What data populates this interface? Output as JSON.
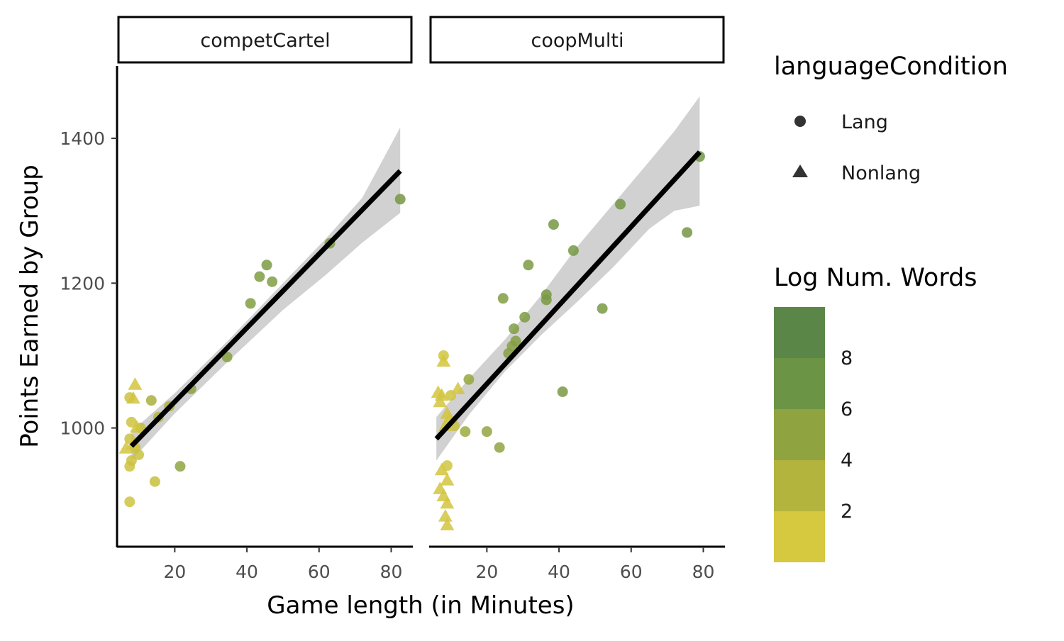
{
  "chart_data": {
    "type": "scatter",
    "xlabel": "Game length (in Minutes)",
    "ylabel": "Points Earned by Group",
    "xlim": [
      4,
      86
    ],
    "ylim": [
      837,
      1500
    ],
    "x_ticks": [
      20,
      40,
      60,
      80
    ],
    "y_ticks": [
      1000,
      1200,
      1400
    ],
    "x_tick_labels": [
      "20",
      "40",
      "60",
      "80"
    ],
    "y_tick_labels": [
      "1000",
      "1200",
      "1400"
    ],
    "grid": false,
    "shape_legend": {
      "title": "languageCondition",
      "items": [
        {
          "label": "Lang",
          "shape": "circle"
        },
        {
          "label": "Nonlang",
          "shape": "triangle"
        }
      ]
    },
    "color_legend": {
      "title": "Log Num. Words",
      "breaks": [
        2,
        4,
        6,
        8
      ],
      "break_labels": [
        "2",
        "4",
        "6",
        "8"
      ],
      "range": [
        0,
        10
      ],
      "colors": [
        "#d6c83f",
        "#b3b43e",
        "#8fa441",
        "#6c9445",
        "#5a8748"
      ]
    },
    "panels": [
      {
        "strip": "competCartel",
        "fit": {
          "x0": 8,
          "y0": 975,
          "x1": 82.5,
          "y1": 1355
        },
        "band": {
          "x": [
            8,
            20,
            35,
            50,
            62,
            72,
            82.5
          ],
          "upper": [
            995,
            1048,
            1122,
            1200,
            1262,
            1318,
            1415
          ],
          "lower": [
            955,
            1020,
            1093,
            1163,
            1212,
            1256,
            1297
          ]
        },
        "points": [
          {
            "x": 7.5,
            "y": 898,
            "w": 0.5,
            "shape": "circle"
          },
          {
            "x": 7.5,
            "y": 947,
            "w": 0.6,
            "shape": "circle"
          },
          {
            "x": 8,
            "y": 955,
            "w": 0.7,
            "shape": "circle"
          },
          {
            "x": 7.5,
            "y": 985,
            "w": 0.8,
            "shape": "circle"
          },
          {
            "x": 8,
            "y": 1008,
            "w": 0.6,
            "shape": "circle"
          },
          {
            "x": 7.5,
            "y": 1042,
            "w": 0.7,
            "shape": "circle"
          },
          {
            "x": 10,
            "y": 963,
            "w": 0.9,
            "shape": "circle"
          },
          {
            "x": 9,
            "y": 973,
            "w": 1.0,
            "shape": "circle"
          },
          {
            "x": 10.5,
            "y": 1000,
            "w": 1.5,
            "shape": "circle"
          },
          {
            "x": 14.5,
            "y": 926,
            "w": 1.1,
            "shape": "circle"
          },
          {
            "x": 13.5,
            "y": 1038,
            "w": 3.2,
            "shape": "circle"
          },
          {
            "x": 15.5,
            "y": 1015,
            "w": 2.4,
            "shape": "circle"
          },
          {
            "x": 18.5,
            "y": 1030,
            "w": 2.6,
            "shape": "circle"
          },
          {
            "x": 21.5,
            "y": 947,
            "w": 5.0,
            "shape": "circle"
          },
          {
            "x": 24.5,
            "y": 1054,
            "w": 5.2,
            "shape": "circle"
          },
          {
            "x": 34.5,
            "y": 1098,
            "w": 5.5,
            "shape": "circle"
          },
          {
            "x": 41,
            "y": 1172,
            "w": 6.0,
            "shape": "circle"
          },
          {
            "x": 43.5,
            "y": 1209,
            "w": 6.2,
            "shape": "circle"
          },
          {
            "x": 45.5,
            "y": 1225,
            "w": 6.4,
            "shape": "circle"
          },
          {
            "x": 47,
            "y": 1202,
            "w": 6.0,
            "shape": "circle"
          },
          {
            "x": 63,
            "y": 1255,
            "w": 6.6,
            "shape": "circle"
          },
          {
            "x": 82.5,
            "y": 1316,
            "w": 6.8,
            "shape": "circle"
          },
          {
            "x": 6.5,
            "y": 972,
            "w": 0.3,
            "shape": "triangle"
          },
          {
            "x": 8.5,
            "y": 1041,
            "w": 0.3,
            "shape": "triangle"
          },
          {
            "x": 9,
            "y": 1060,
            "w": 0.3,
            "shape": "triangle"
          },
          {
            "x": 9.5,
            "y": 1001,
            "w": 0.3,
            "shape": "triangle"
          },
          {
            "x": 8.5,
            "y": 978,
            "w": 0.3,
            "shape": "triangle"
          }
        ]
      },
      {
        "strip": "coopMulti",
        "fit": {
          "x0": 6,
          "y0": 985,
          "x1": 79,
          "y1": 1381
        },
        "band": {
          "x": [
            6,
            15,
            25,
            35,
            45,
            55,
            65,
            72,
            79
          ],
          "upper": [
            1015,
            1068,
            1122,
            1183,
            1250,
            1309,
            1368,
            1410,
            1458
          ],
          "lower": [
            955,
            1018,
            1078,
            1128,
            1174,
            1222,
            1275,
            1300,
            1307
          ]
        },
        "points": [
          {
            "x": 9,
            "y": 948,
            "w": 0.4,
            "shape": "circle"
          },
          {
            "x": 8,
            "y": 1100,
            "w": 0.4,
            "shape": "circle"
          },
          {
            "x": 10,
            "y": 1045,
            "w": 0.6,
            "shape": "circle"
          },
          {
            "x": 11,
            "y": 1003,
            "w": 1.0,
            "shape": "circle"
          },
          {
            "x": 14,
            "y": 995,
            "w": 4.0,
            "shape": "circle"
          },
          {
            "x": 15,
            "y": 1067,
            "w": 4.5,
            "shape": "circle"
          },
          {
            "x": 20,
            "y": 995,
            "w": 4.8,
            "shape": "circle"
          },
          {
            "x": 23.5,
            "y": 973,
            "w": 5.0,
            "shape": "circle"
          },
          {
            "x": 24.5,
            "y": 1179,
            "w": 6.0,
            "shape": "circle"
          },
          {
            "x": 26,
            "y": 1103,
            "w": 5.6,
            "shape": "circle"
          },
          {
            "x": 27,
            "y": 1113,
            "w": 5.5,
            "shape": "circle"
          },
          {
            "x": 27.5,
            "y": 1137,
            "w": 6.0,
            "shape": "circle"
          },
          {
            "x": 28,
            "y": 1120,
            "w": 5.8,
            "shape": "circle"
          },
          {
            "x": 30.5,
            "y": 1153,
            "w": 6.2,
            "shape": "circle"
          },
          {
            "x": 31.5,
            "y": 1225,
            "w": 6.4,
            "shape": "circle"
          },
          {
            "x": 36.5,
            "y": 1184,
            "w": 6.6,
            "shape": "circle"
          },
          {
            "x": 36.5,
            "y": 1177,
            "w": 6.5,
            "shape": "circle"
          },
          {
            "x": 38.5,
            "y": 1281,
            "w": 6.8,
            "shape": "circle"
          },
          {
            "x": 41,
            "y": 1050,
            "w": 6.5,
            "shape": "circle"
          },
          {
            "x": 44,
            "y": 1245,
            "w": 6.8,
            "shape": "circle"
          },
          {
            "x": 52,
            "y": 1165,
            "w": 6.6,
            "shape": "circle"
          },
          {
            "x": 57,
            "y": 1309,
            "w": 7.0,
            "shape": "circle"
          },
          {
            "x": 75.5,
            "y": 1270,
            "w": 7.0,
            "shape": "circle"
          },
          {
            "x": 79,
            "y": 1375,
            "w": 7.2,
            "shape": "circle"
          },
          {
            "x": 8,
            "y": 1092,
            "w": 0.3,
            "shape": "triangle"
          },
          {
            "x": 6.5,
            "y": 1049,
            "w": 0.3,
            "shape": "triangle"
          },
          {
            "x": 7.5,
            "y": 1045,
            "w": 0.3,
            "shape": "triangle"
          },
          {
            "x": 12,
            "y": 1054,
            "w": 0.3,
            "shape": "triangle"
          },
          {
            "x": 7,
            "y": 1036,
            "w": 0.3,
            "shape": "triangle"
          },
          {
            "x": 9,
            "y": 1020,
            "w": 0.3,
            "shape": "triangle"
          },
          {
            "x": 9.5,
            "y": 1012,
            "w": 0.3,
            "shape": "triangle"
          },
          {
            "x": 8.5,
            "y": 1003,
            "w": 0.3,
            "shape": "triangle"
          },
          {
            "x": 7.5,
            "y": 942,
            "w": 0.3,
            "shape": "triangle"
          },
          {
            "x": 9,
            "y": 928,
            "w": 0.3,
            "shape": "triangle"
          },
          {
            "x": 7,
            "y": 916,
            "w": 0.3,
            "shape": "triangle"
          },
          {
            "x": 8,
            "y": 906,
            "w": 0.3,
            "shape": "triangle"
          },
          {
            "x": 9,
            "y": 896,
            "w": 0.3,
            "shape": "triangle"
          },
          {
            "x": 8.5,
            "y": 878,
            "w": 0.3,
            "shape": "triangle"
          },
          {
            "x": 9,
            "y": 866,
            "w": 0.3,
            "shape": "triangle"
          }
        ]
      }
    ]
  }
}
